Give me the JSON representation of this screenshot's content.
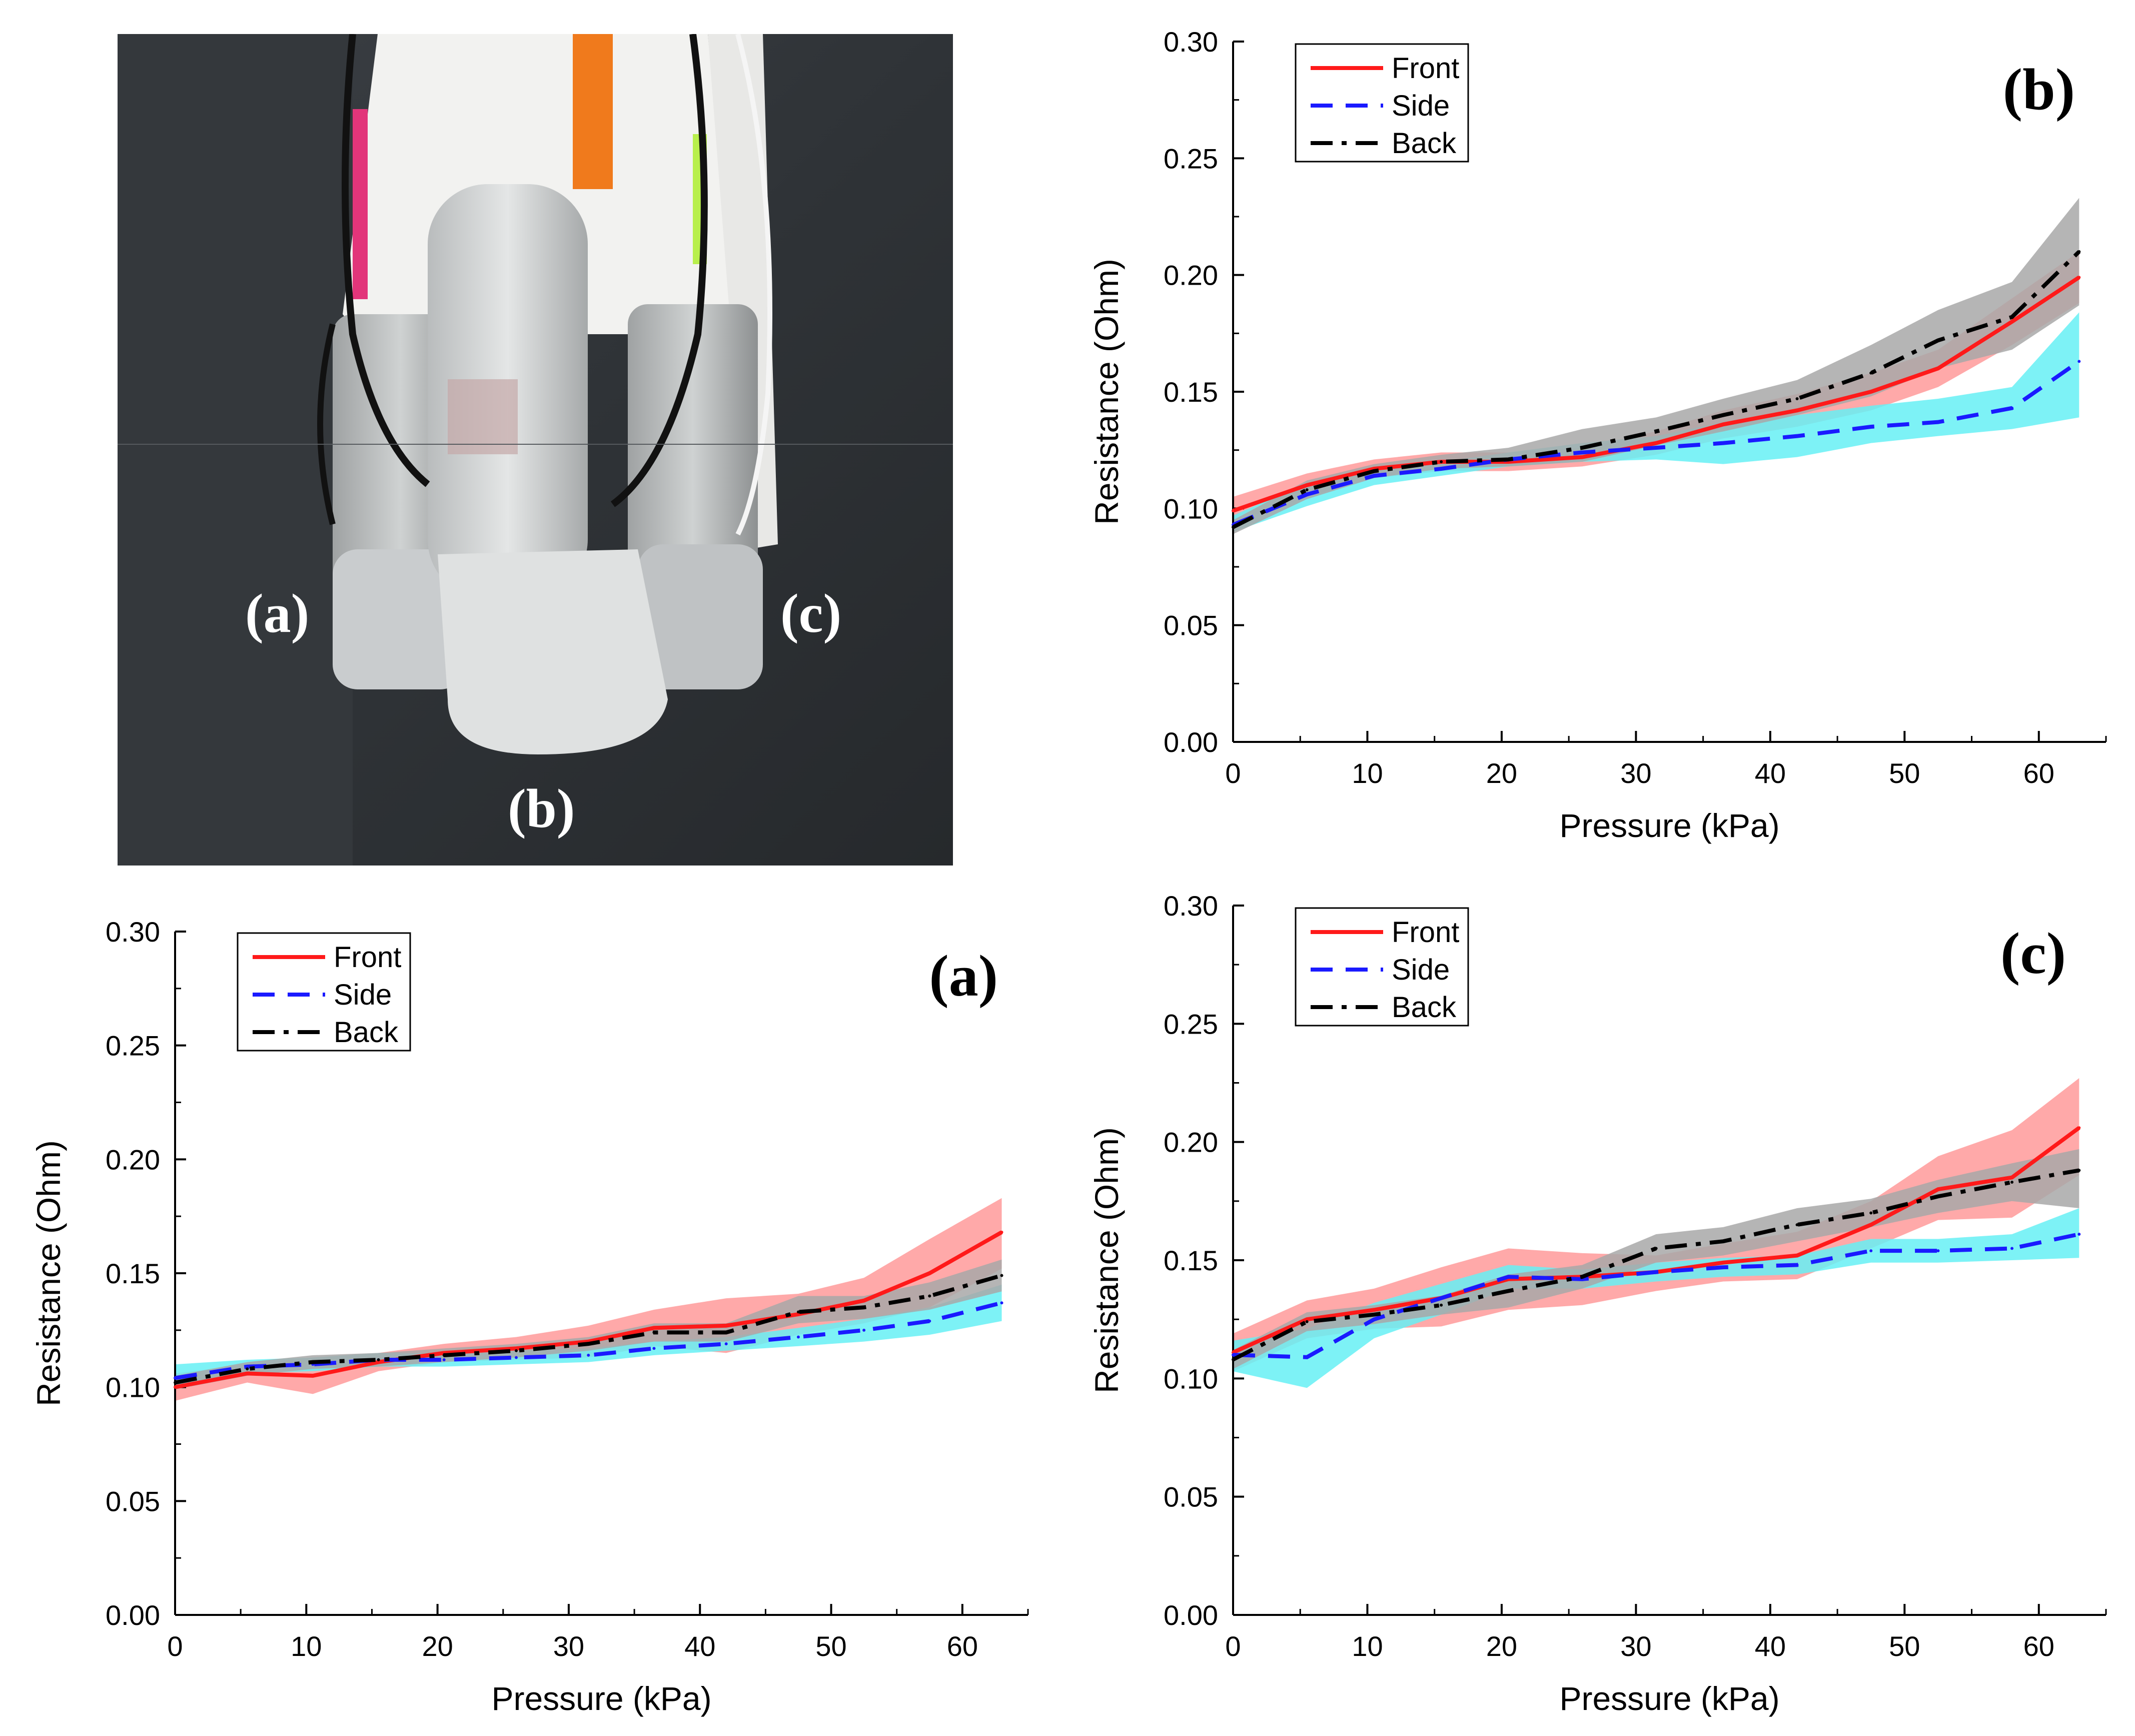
{
  "photo": {
    "labels": [
      "(a)",
      "(b)",
      "(c)"
    ]
  },
  "legend": {
    "entries": [
      {
        "name": "Front",
        "color": "#ff1a1a",
        "dash": "solid"
      },
      {
        "name": "Side",
        "color": "#1a1aff",
        "dash": "dashed"
      },
      {
        "name": "Back",
        "color": "#000000",
        "dash": "dash-dot"
      }
    ]
  },
  "band_colors": {
    "Front": "#ff9a9a",
    "Side": "#66f0f5",
    "Back": "#a8a8a8"
  },
  "chart_data": [
    {
      "type": "line",
      "panel_label": "(b)",
      "xlabel": "Pressure (kPa)",
      "ylabel": "Resistance (Ohm)",
      "xlim": [
        0,
        65
      ],
      "ylim": [
        0,
        0.3
      ],
      "xticks": [
        "0",
        "10",
        "20",
        "30",
        "40",
        "50",
        "60"
      ],
      "yticks": [
        "0.00",
        "0.05",
        "0.10",
        "0.15",
        "0.20",
        "0.25",
        "0.30"
      ],
      "x": [
        0,
        5.5,
        10.5,
        15.5,
        20.5,
        26,
        31.5,
        36.5,
        42,
        47.5,
        52.5,
        58,
        63
      ],
      "series": [
        {
          "name": "Front",
          "values": [
            0.099,
            0.11,
            0.117,
            0.12,
            0.12,
            0.122,
            0.128,
            0.136,
            0.142,
            0.15,
            0.16,
            0.18,
            0.199
          ],
          "band": [
            [
              0.094,
              0.105
            ],
            [
              0.105,
              0.115
            ],
            [
              0.113,
              0.121
            ],
            [
              0.116,
              0.124
            ],
            [
              0.116,
              0.124
            ],
            [
              0.118,
              0.126
            ],
            [
              0.123,
              0.133
            ],
            [
              0.13,
              0.142
            ],
            [
              0.135,
              0.149
            ],
            [
              0.142,
              0.158
            ],
            [
              0.152,
              0.168
            ],
            [
              0.17,
              0.19
            ],
            [
              0.188,
              0.21
            ]
          ]
        },
        {
          "name": "Side",
          "values": [
            0.093,
            0.106,
            0.114,
            0.117,
            0.121,
            0.124,
            0.126,
            0.128,
            0.131,
            0.135,
            0.137,
            0.143,
            0.163
          ],
          "band": [
            [
              0.09,
              0.097
            ],
            [
              0.101,
              0.111
            ],
            [
              0.11,
              0.118
            ],
            [
              0.114,
              0.12
            ],
            [
              0.118,
              0.124
            ],
            [
              0.12,
              0.128
            ],
            [
              0.121,
              0.131
            ],
            [
              0.119,
              0.137
            ],
            [
              0.122,
              0.14
            ],
            [
              0.128,
              0.144
            ],
            [
              0.131,
              0.147
            ],
            [
              0.134,
              0.152
            ],
            [
              0.139,
              0.184
            ]
          ]
        },
        {
          "name": "Back",
          "values": [
            0.092,
            0.108,
            0.116,
            0.12,
            0.121,
            0.126,
            0.133,
            0.14,
            0.147,
            0.158,
            0.172,
            0.182,
            0.21
          ],
          "band": [
            [
              0.089,
              0.095
            ],
            [
              0.104,
              0.112
            ],
            [
              0.113,
              0.119
            ],
            [
              0.117,
              0.123
            ],
            [
              0.118,
              0.126
            ],
            [
              0.12,
              0.134
            ],
            [
              0.127,
              0.139
            ],
            [
              0.133,
              0.147
            ],
            [
              0.14,
              0.155
            ],
            [
              0.148,
              0.17
            ],
            [
              0.16,
              0.185
            ],
            [
              0.168,
              0.197
            ],
            [
              0.187,
              0.233
            ]
          ]
        }
      ]
    },
    {
      "type": "line",
      "panel_label": "(a)",
      "xlabel": "Pressure (kPa)",
      "ylabel": "Resistance (Ohm)",
      "xlim": [
        0,
        65
      ],
      "ylim": [
        0,
        0.3
      ],
      "xticks": [
        "0",
        "10",
        "20",
        "30",
        "40",
        "50",
        "60"
      ],
      "yticks": [
        "0.00",
        "0.05",
        "0.10",
        "0.15",
        "0.20",
        "0.25",
        "0.30"
      ],
      "x": [
        0,
        5.5,
        10.5,
        15.5,
        20.5,
        26,
        31.5,
        36.5,
        42,
        47.5,
        52.5,
        57.5,
        63
      ],
      "series": [
        {
          "name": "Front",
          "values": [
            0.1,
            0.106,
            0.105,
            0.111,
            0.115,
            0.117,
            0.12,
            0.126,
            0.127,
            0.132,
            0.138,
            0.15,
            0.168
          ],
          "band": [
            [
              0.094,
              0.106
            ],
            [
              0.102,
              0.11
            ],
            [
              0.097,
              0.113
            ],
            [
              0.107,
              0.115
            ],
            [
              0.111,
              0.119
            ],
            [
              0.112,
              0.122
            ],
            [
              0.113,
              0.127
            ],
            [
              0.118,
              0.134
            ],
            [
              0.115,
              0.139
            ],
            [
              0.123,
              0.141
            ],
            [
              0.128,
              0.148
            ],
            [
              0.135,
              0.165
            ],
            [
              0.152,
              0.183
            ]
          ]
        },
        {
          "name": "Side",
          "values": [
            0.104,
            0.109,
            0.11,
            0.112,
            0.112,
            0.113,
            0.114,
            0.117,
            0.119,
            0.122,
            0.125,
            0.129,
            0.137
          ],
          "band": [
            [
              0.099,
              0.11
            ],
            [
              0.106,
              0.112
            ],
            [
              0.107,
              0.113
            ],
            [
              0.109,
              0.115
            ],
            [
              0.109,
              0.115
            ],
            [
              0.11,
              0.116
            ],
            [
              0.111,
              0.117
            ],
            [
              0.114,
              0.12
            ],
            [
              0.116,
              0.122
            ],
            [
              0.118,
              0.126
            ],
            [
              0.12,
              0.13
            ],
            [
              0.123,
              0.135
            ],
            [
              0.129,
              0.145
            ]
          ]
        },
        {
          "name": "Back",
          "values": [
            0.102,
            0.108,
            0.111,
            0.112,
            0.114,
            0.116,
            0.119,
            0.124,
            0.124,
            0.133,
            0.135,
            0.14,
            0.149
          ],
          "band": [
            [
              0.099,
              0.105
            ],
            [
              0.105,
              0.111
            ],
            [
              0.108,
              0.114
            ],
            [
              0.109,
              0.115
            ],
            [
              0.111,
              0.117
            ],
            [
              0.113,
              0.119
            ],
            [
              0.116,
              0.122
            ],
            [
              0.12,
              0.128
            ],
            [
              0.12,
              0.128
            ],
            [
              0.128,
              0.14
            ],
            [
              0.13,
              0.14
            ],
            [
              0.134,
              0.146
            ],
            [
              0.142,
              0.156
            ]
          ]
        }
      ]
    },
    {
      "type": "line",
      "panel_label": "(c)",
      "xlabel": "Pressure (kPa)",
      "ylabel": "Resistance (Ohm)",
      "xlim": [
        0,
        65
      ],
      "ylim": [
        0,
        0.3
      ],
      "xticks": [
        "0",
        "10",
        "20",
        "30",
        "40",
        "50",
        "60"
      ],
      "yticks": [
        "0.00",
        "0.05",
        "0.10",
        "0.15",
        "0.20",
        "0.25",
        "0.30"
      ],
      "x": [
        0,
        5.5,
        10.5,
        15.5,
        20.5,
        26,
        31.5,
        36.5,
        42,
        47.5,
        52.5,
        58,
        63
      ],
      "series": [
        {
          "name": "Front",
          "values": [
            0.111,
            0.125,
            0.129,
            0.134,
            0.142,
            0.143,
            0.145,
            0.149,
            0.152,
            0.165,
            0.18,
            0.185,
            0.206
          ],
          "band": [
            [
              0.103,
              0.119
            ],
            [
              0.117,
              0.133
            ],
            [
              0.121,
              0.138
            ],
            [
              0.122,
              0.147
            ],
            [
              0.129,
              0.155
            ],
            [
              0.131,
              0.153
            ],
            [
              0.137,
              0.152
            ],
            [
              0.141,
              0.157
            ],
            [
              0.142,
              0.162
            ],
            [
              0.155,
              0.175
            ],
            [
              0.167,
              0.194
            ],
            [
              0.168,
              0.205
            ],
            [
              0.186,
              0.227
            ]
          ]
        },
        {
          "name": "Side",
          "values": [
            0.11,
            0.109,
            0.125,
            0.134,
            0.143,
            0.142,
            0.145,
            0.147,
            0.148,
            0.154,
            0.154,
            0.155,
            0.161
          ],
          "band": [
            [
              0.103,
              0.116
            ],
            [
              0.096,
              0.121
            ],
            [
              0.117,
              0.132
            ],
            [
              0.127,
              0.14
            ],
            [
              0.138,
              0.148
            ],
            [
              0.138,
              0.146
            ],
            [
              0.141,
              0.149
            ],
            [
              0.143,
              0.151
            ],
            [
              0.144,
              0.152
            ],
            [
              0.149,
              0.159
            ],
            [
              0.149,
              0.159
            ],
            [
              0.15,
              0.161
            ],
            [
              0.151,
              0.172
            ]
          ]
        },
        {
          "name": "Back",
          "values": [
            0.108,
            0.124,
            0.127,
            0.131,
            0.137,
            0.143,
            0.155,
            0.158,
            0.165,
            0.17,
            0.177,
            0.183,
            0.188
          ],
          "band": [
            [
              0.104,
              0.112
            ],
            [
              0.12,
              0.128
            ],
            [
              0.123,
              0.131
            ],
            [
              0.127,
              0.135
            ],
            [
              0.13,
              0.144
            ],
            [
              0.138,
              0.148
            ],
            [
              0.149,
              0.161
            ],
            [
              0.152,
              0.164
            ],
            [
              0.158,
              0.172
            ],
            [
              0.164,
              0.176
            ],
            [
              0.17,
              0.184
            ],
            [
              0.175,
              0.191
            ],
            [
              0.172,
              0.197
            ]
          ]
        }
      ]
    }
  ]
}
